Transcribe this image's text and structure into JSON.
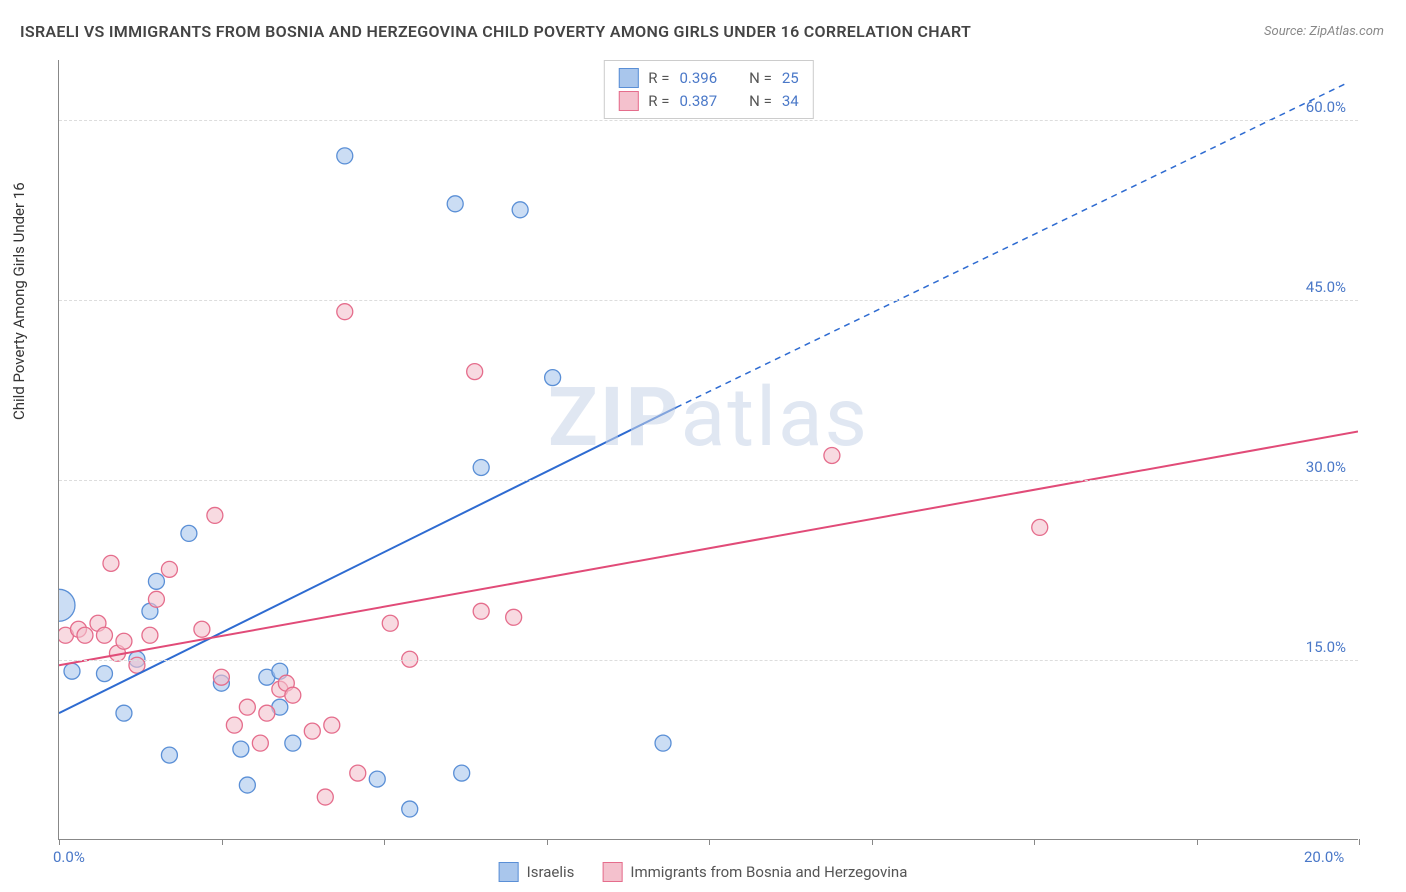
{
  "title": "ISRAELI VS IMMIGRANTS FROM BOSNIA AND HERZEGOVINA CHILD POVERTY AMONG GIRLS UNDER 16 CORRELATION CHART",
  "source": "Source: ZipAtlas.com",
  "ylabel": "Child Poverty Among Girls Under 16",
  "watermark_prefix": "ZIP",
  "watermark_suffix": "atlas",
  "chart": {
    "type": "scatter",
    "background_color": "#ffffff",
    "grid_color": "#dddddd",
    "axis_color": "#888888",
    "tick_label_color": "#4a78c8",
    "xlim": [
      0,
      20
    ],
    "ylim": [
      0,
      65
    ],
    "xticks": [
      0,
      2.5,
      5,
      7.5,
      10,
      12.5,
      15,
      17.5,
      20
    ],
    "xtick_labels": {
      "0": "0.0%",
      "20": "20.0%"
    },
    "yticks": [
      15,
      30,
      45,
      60
    ],
    "ytick_labels": {
      "15": "15.0%",
      "30": "30.0%",
      "45": "45.0%",
      "60": "60.0%"
    },
    "title_fontsize": 16,
    "label_fontsize": 15,
    "series": [
      {
        "name": "Israelis",
        "color_fill": "#a9c6ec",
        "color_stroke": "#5a8fd6",
        "marker_radius": 8,
        "trend_color": "#2e6bd1",
        "trend_solid": [
          [
            0,
            10.5
          ],
          [
            9.5,
            36
          ]
        ],
        "trend_dashed": [
          [
            9.5,
            36
          ],
          [
            19.8,
            63
          ]
        ],
        "trend_width": 2,
        "R": "0.396",
        "N": "25",
        "points": [
          [
            0.0,
            19.5,
            16
          ],
          [
            0.2,
            14.0,
            8
          ],
          [
            0.7,
            13.8,
            8
          ],
          [
            1.0,
            10.5,
            8
          ],
          [
            1.2,
            15.0,
            8
          ],
          [
            1.4,
            19.0,
            8
          ],
          [
            1.5,
            21.5,
            8
          ],
          [
            1.7,
            7.0,
            8
          ],
          [
            2.0,
            25.5,
            8
          ],
          [
            2.5,
            13.0,
            8
          ],
          [
            2.8,
            7.5,
            8
          ],
          [
            2.9,
            4.5,
            8
          ],
          [
            3.2,
            13.5,
            8
          ],
          [
            3.4,
            11.0,
            8
          ],
          [
            3.4,
            14.0,
            8
          ],
          [
            3.6,
            8.0,
            8
          ],
          [
            4.4,
            57.0,
            8
          ],
          [
            4.9,
            5.0,
            8
          ],
          [
            5.4,
            2.5,
            8
          ],
          [
            6.1,
            53.0,
            8
          ],
          [
            6.2,
            5.5,
            8
          ],
          [
            6.5,
            31.0,
            8
          ],
          [
            7.1,
            52.5,
            8
          ],
          [
            7.6,
            38.5,
            8
          ],
          [
            9.3,
            8.0,
            8
          ]
        ]
      },
      {
        "name": "Immigrants from Bosnia and Herzegovina",
        "color_fill": "#f4c1cd",
        "color_stroke": "#e56d8c",
        "marker_radius": 8,
        "trend_color": "#e14b78",
        "trend_solid": [
          [
            0,
            14.5
          ],
          [
            20,
            34
          ]
        ],
        "trend_width": 2,
        "R": "0.387",
        "N": "34",
        "points": [
          [
            0.1,
            17.0,
            8
          ],
          [
            0.3,
            17.5,
            8
          ],
          [
            0.4,
            17.0,
            8
          ],
          [
            0.6,
            18.0,
            8
          ],
          [
            0.7,
            17.0,
            8
          ],
          [
            0.8,
            23.0,
            8
          ],
          [
            0.9,
            15.5,
            8
          ],
          [
            1.0,
            16.5,
            8
          ],
          [
            1.2,
            14.5,
            8
          ],
          [
            1.4,
            17.0,
            8
          ],
          [
            1.5,
            20.0,
            8
          ],
          [
            1.7,
            22.5,
            8
          ],
          [
            2.2,
            17.5,
            8
          ],
          [
            2.4,
            27.0,
            8
          ],
          [
            2.5,
            13.5,
            8
          ],
          [
            2.7,
            9.5,
            8
          ],
          [
            2.9,
            11.0,
            8
          ],
          [
            3.1,
            8.0,
            8
          ],
          [
            3.2,
            10.5,
            8
          ],
          [
            3.4,
            12.5,
            8
          ],
          [
            3.5,
            13.0,
            8
          ],
          [
            3.6,
            12.0,
            8
          ],
          [
            3.9,
            9.0,
            8
          ],
          [
            4.1,
            3.5,
            8
          ],
          [
            4.2,
            9.5,
            8
          ],
          [
            4.4,
            44.0,
            8
          ],
          [
            4.6,
            5.5,
            8
          ],
          [
            5.1,
            18.0,
            8
          ],
          [
            5.4,
            15.0,
            8
          ],
          [
            6.4,
            39.0,
            8
          ],
          [
            6.5,
            19.0,
            8
          ],
          [
            7.0,
            18.5,
            8
          ],
          [
            11.9,
            32.0,
            8
          ],
          [
            15.1,
            26.0,
            8
          ]
        ]
      }
    ]
  },
  "legend_top": [
    {
      "swatch_fill": "#a9c6ec",
      "swatch_border": "#5a8fd6",
      "r_label": "R =",
      "r_value": "0.396",
      "n_label": "N =",
      "n_value": "25"
    },
    {
      "swatch_fill": "#f4c1cd",
      "swatch_border": "#e56d8c",
      "r_label": "R =",
      "r_value": "0.387",
      "n_label": "N =",
      "n_value": "34"
    }
  ],
  "legend_bottom": [
    {
      "swatch_fill": "#a9c6ec",
      "swatch_border": "#5a8fd6",
      "label": "Israelis"
    },
    {
      "swatch_fill": "#f4c1cd",
      "swatch_border": "#e56d8c",
      "label": "Immigrants from Bosnia and Herzegovina"
    }
  ]
}
